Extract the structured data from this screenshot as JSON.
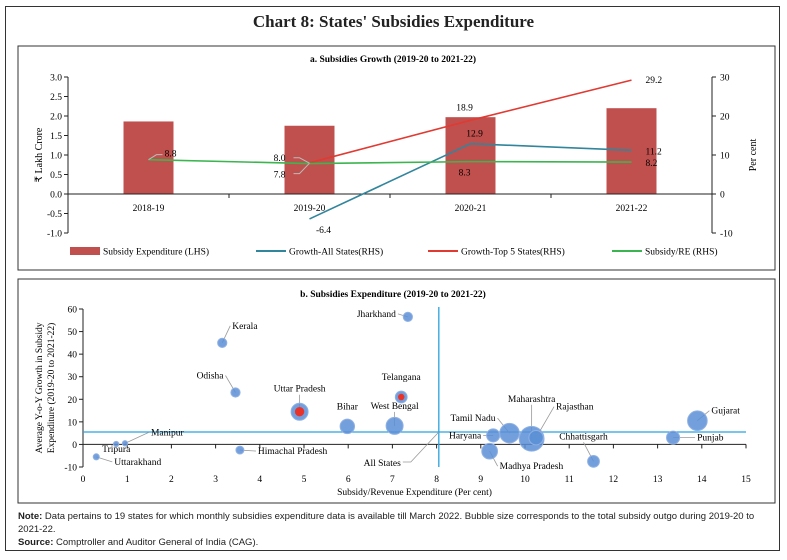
{
  "title": "Chart 8: States' Subsidies Expenditure",
  "chart_data": [
    {
      "type": "bar",
      "title": "a. Subsidies Growth (2019-20 to 2021-22)",
      "categories": [
        "2018-19",
        "2019-20",
        "2020-21",
        "2021-22"
      ],
      "ylabel": "₹ Lakh Crore",
      "y2label": "Per cent",
      "ylim": [
        -1.0,
        3.0
      ],
      "y2lim": [
        -10,
        30
      ],
      "yticks": [
        "3.0",
        "2.5",
        "2.0",
        "1.5",
        "1.0",
        "0.5",
        "0.0",
        "-0.5",
        "-1.0"
      ],
      "y2ticks": [
        "30",
        "20",
        "10",
        "0",
        "-10"
      ],
      "grid": false,
      "legend_position": "bottom",
      "series": [
        {
          "name": "Subsidy Expenditure (LHS)",
          "type": "bar",
          "axis": "left",
          "color": "#c0504d",
          "values": [
            1.86,
            1.75,
            1.97,
            2.2
          ]
        },
        {
          "name": "Growth-All States(RHS)",
          "type": "line",
          "axis": "right",
          "color": "#31859c",
          "values": [
            null,
            -6.4,
            12.9,
            11.2
          ],
          "labels": [
            "",
            "-6.4",
            "12.9",
            "11.2"
          ]
        },
        {
          "name": "Growth-Top 5 States(RHS)",
          "type": "line",
          "axis": "right",
          "color": "#e03a32",
          "values": [
            null,
            8.0,
            18.9,
            29.2
          ],
          "labels": [
            "",
            "8.0",
            "18.9",
            "29.2"
          ]
        },
        {
          "name": "Subsidy/RE (RHS)",
          "type": "line",
          "axis": "right",
          "color": "#3cb550",
          "values": [
            8.8,
            7.8,
            8.3,
            8.2
          ],
          "labels": [
            "8.8",
            "7.8",
            "8.3",
            "8.2"
          ]
        }
      ]
    },
    {
      "type": "scatter",
      "title": "b. Subsidies Expenditure (2019-20 to 2021-22)",
      "xlabel": "Subsidy/Revenue Expenditure (Per cent)",
      "ylabel": "Average Y-o-Y Growth in Subsidy Expenditure (2019-20 to 2021-22)",
      "ylabel_lines": [
        "Average Y-o-Y Growth in Subsidy",
        "Expenditure (2019-20 to 2021-22)"
      ],
      "xlim": [
        0,
        15
      ],
      "ylim": [
        -10,
        60
      ],
      "xticks": [
        "0",
        "1",
        "2",
        "3",
        "4",
        "5",
        "6",
        "7",
        "8",
        "9",
        "10",
        "11",
        "12",
        "13",
        "14",
        "15"
      ],
      "yticks": [
        "60",
        "50",
        "40",
        "30",
        "20",
        "10",
        "0",
        "-10"
      ],
      "grid": false,
      "reference_lines": {
        "label": "All States",
        "x": 8.05,
        "y": 5.5
      },
      "points": [
        {
          "name": "Jharkhand",
          "x": 7.35,
          "y": 56.5,
          "size": 2,
          "highlight": false
        },
        {
          "name": "Kerala",
          "x": 3.15,
          "y": 45,
          "size": 2,
          "highlight": false
        },
        {
          "name": "Odisha",
          "x": 3.45,
          "y": 23,
          "size": 2,
          "highlight": false
        },
        {
          "name": "Uttar Pradesh",
          "x": 4.9,
          "y": 14.5,
          "size": 5,
          "highlight": true
        },
        {
          "name": "Telangana",
          "x": 7.2,
          "y": 21,
          "size": 3,
          "highlight": true
        },
        {
          "name": "Bihar",
          "x": 5.98,
          "y": 8,
          "size": 4,
          "highlight": false
        },
        {
          "name": "West Bengal",
          "x": 7.05,
          "y": 8.2,
          "size": 5,
          "highlight": false
        },
        {
          "name": "Tamil Nadu",
          "x": 9.65,
          "y": 5,
          "size": 6,
          "highlight": false
        },
        {
          "name": "Haryana",
          "x": 9.28,
          "y": 4,
          "size": 3.5,
          "highlight": false
        },
        {
          "name": "Maharashtra",
          "x": 10.15,
          "y": 2.5,
          "size": 8,
          "highlight": false
        },
        {
          "name": "Rajasthan",
          "x": 10.25,
          "y": 3,
          "size": 4,
          "highlight": false
        },
        {
          "name": "Madhya Pradesh",
          "x": 9.2,
          "y": -3,
          "size": 4.5,
          "highlight": false
        },
        {
          "name": "Chhattisgarh",
          "x": 11.55,
          "y": -7.5,
          "size": 3,
          "highlight": false
        },
        {
          "name": "Gujarat",
          "x": 13.9,
          "y": 10.5,
          "size": 6,
          "highlight": false
        },
        {
          "name": "Punjab",
          "x": 13.35,
          "y": 3,
          "size": 3.5,
          "highlight": false
        },
        {
          "name": "Himachal Pradesh",
          "x": 3.55,
          "y": -2.5,
          "size": 1.5,
          "highlight": false
        },
        {
          "name": "Manipur",
          "x": 0.95,
          "y": 0.5,
          "size": 0.5,
          "highlight": false
        },
        {
          "name": "Tripura",
          "x": 0.75,
          "y": 0.2,
          "size": 0.5,
          "highlight": false
        },
        {
          "name": "Uttarakhand",
          "x": 0.3,
          "y": -5.5,
          "size": 0.8,
          "highlight": false
        }
      ]
    }
  ],
  "notes": {
    "note_label": "Note:",
    "note_text": " Data pertains to 19 states for which monthly subsidies expenditure data is available till March 2022. Bubble size corresponds to the total subsidy outgo during 2019-20 to 2021-22.",
    "source_label": "Source:",
    "source_text": " Comptroller and Auditor General of India (CAG)."
  }
}
